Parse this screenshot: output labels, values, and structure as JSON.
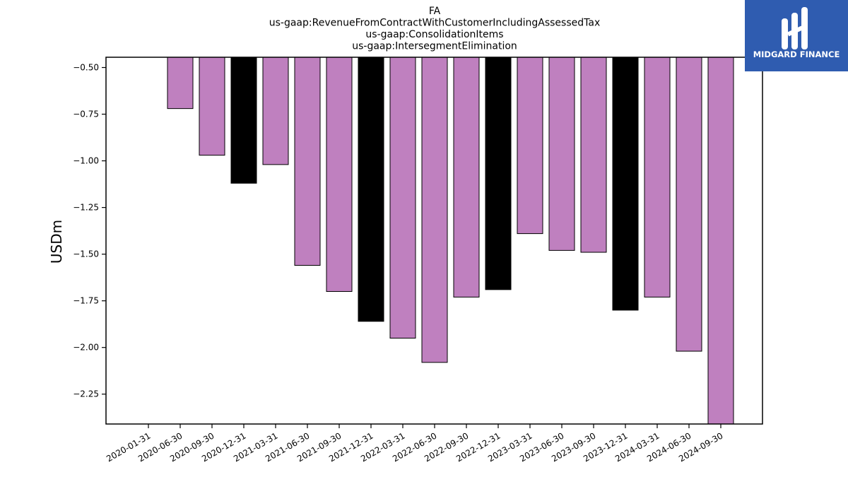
{
  "chart_data": {
    "type": "bar",
    "title": [
      "FA",
      "us-gaap:RevenueFromContractWithCustomerIncludingAssessedTax",
      "us-gaap:ConsolidationItems",
      "us-gaap:IntersegmentElimination"
    ],
    "xlabel": "",
    "ylabel": "USDm",
    "ylim": [
      -2.41,
      -0.445
    ],
    "yticks": [
      -0.5,
      -0.75,
      -1.0,
      -1.25,
      -1.5,
      -1.75,
      -2.0,
      -2.25
    ],
    "ytick_labels": [
      "−0.50",
      "−0.75",
      "−1.00",
      "−1.25",
      "−1.50",
      "−1.75",
      "−2.00",
      "−2.25"
    ],
    "categories": [
      "2020-01-31",
      "2020-06-30",
      "2020-09-30",
      "2020-12-31",
      "2021-03-31",
      "2021-06-30",
      "2021-09-30",
      "2021-12-31",
      "2022-03-31",
      "2022-06-30",
      "2022-09-30",
      "2022-12-31",
      "2023-03-31",
      "2023-06-30",
      "2023-09-30",
      "2023-12-31",
      "2024-03-31",
      "2024-06-30",
      "2024-09-30"
    ],
    "values": [
      null,
      -0.72,
      -0.97,
      -1.12,
      -1.02,
      -1.56,
      -1.7,
      -1.86,
      -1.95,
      -2.08,
      -1.73,
      -1.69,
      -1.39,
      -1.48,
      -1.49,
      -1.8,
      -1.73,
      -2.02,
      -2.41
    ],
    "bar_colors": [
      "#bf80bf",
      "#bf80bf",
      "#bf80bf",
      "#000000",
      "#bf80bf",
      "#bf80bf",
      "#bf80bf",
      "#000000",
      "#bf80bf",
      "#bf80bf",
      "#bf80bf",
      "#000000",
      "#bf80bf",
      "#bf80bf",
      "#bf80bf",
      "#000000",
      "#bf80bf",
      "#bf80bf",
      "#bf80bf"
    ],
    "grid": false,
    "legend": "none"
  },
  "logo": {
    "text": "MIDGARD FINANCE",
    "icon": "midgard-logo-mark",
    "background": "#2f5cb0"
  }
}
